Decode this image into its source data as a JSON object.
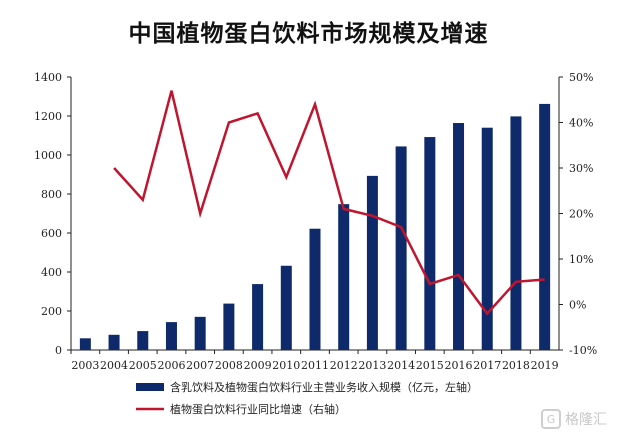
{
  "title": "中国植物蛋白饮料市场规模及增速",
  "chart_data": {
    "type": "bar+line",
    "categories": [
      "2003",
      "2004",
      "2005",
      "2006",
      "2007",
      "2008",
      "2009",
      "2010",
      "2011",
      "2012",
      "2013",
      "2014",
      "2015",
      "2016",
      "2017",
      "2018",
      "2019"
    ],
    "series": [
      {
        "name": "含乳饮料及植物蛋白饮料行业主营业务收入规模（亿元，左轴）",
        "type": "bar",
        "axis": "left",
        "color": "#0f2a6b",
        "values": [
          60,
          78,
          97,
          143,
          170,
          238,
          338,
          432,
          622,
          748,
          893,
          1044,
          1092,
          1164,
          1140,
          1198,
          1262
        ]
      },
      {
        "name": "植物蛋白饮料行业同比增速（右轴）",
        "type": "line",
        "axis": "right",
        "color": "#c0152f",
        "values": [
          null,
          30,
          23,
          47,
          20,
          40,
          42,
          28,
          44,
          21,
          19.5,
          17,
          4.5,
          6.5,
          -2,
          5,
          5.5
        ]
      }
    ],
    "left_axis": {
      "ylim": [
        0,
        1400
      ],
      "ticks": [
        "0",
        "200",
        "400",
        "600",
        "800",
        "1000",
        "1200",
        "1400"
      ]
    },
    "right_axis": {
      "ylim": [
        -10,
        50
      ],
      "ticks": [
        "-10%",
        "0%",
        "10%",
        "20%",
        "30%",
        "40%",
        "50%"
      ]
    },
    "legend_position": "bottom"
  },
  "watermark": {
    "logo_glyph": "G",
    "text": "格隆汇"
  }
}
